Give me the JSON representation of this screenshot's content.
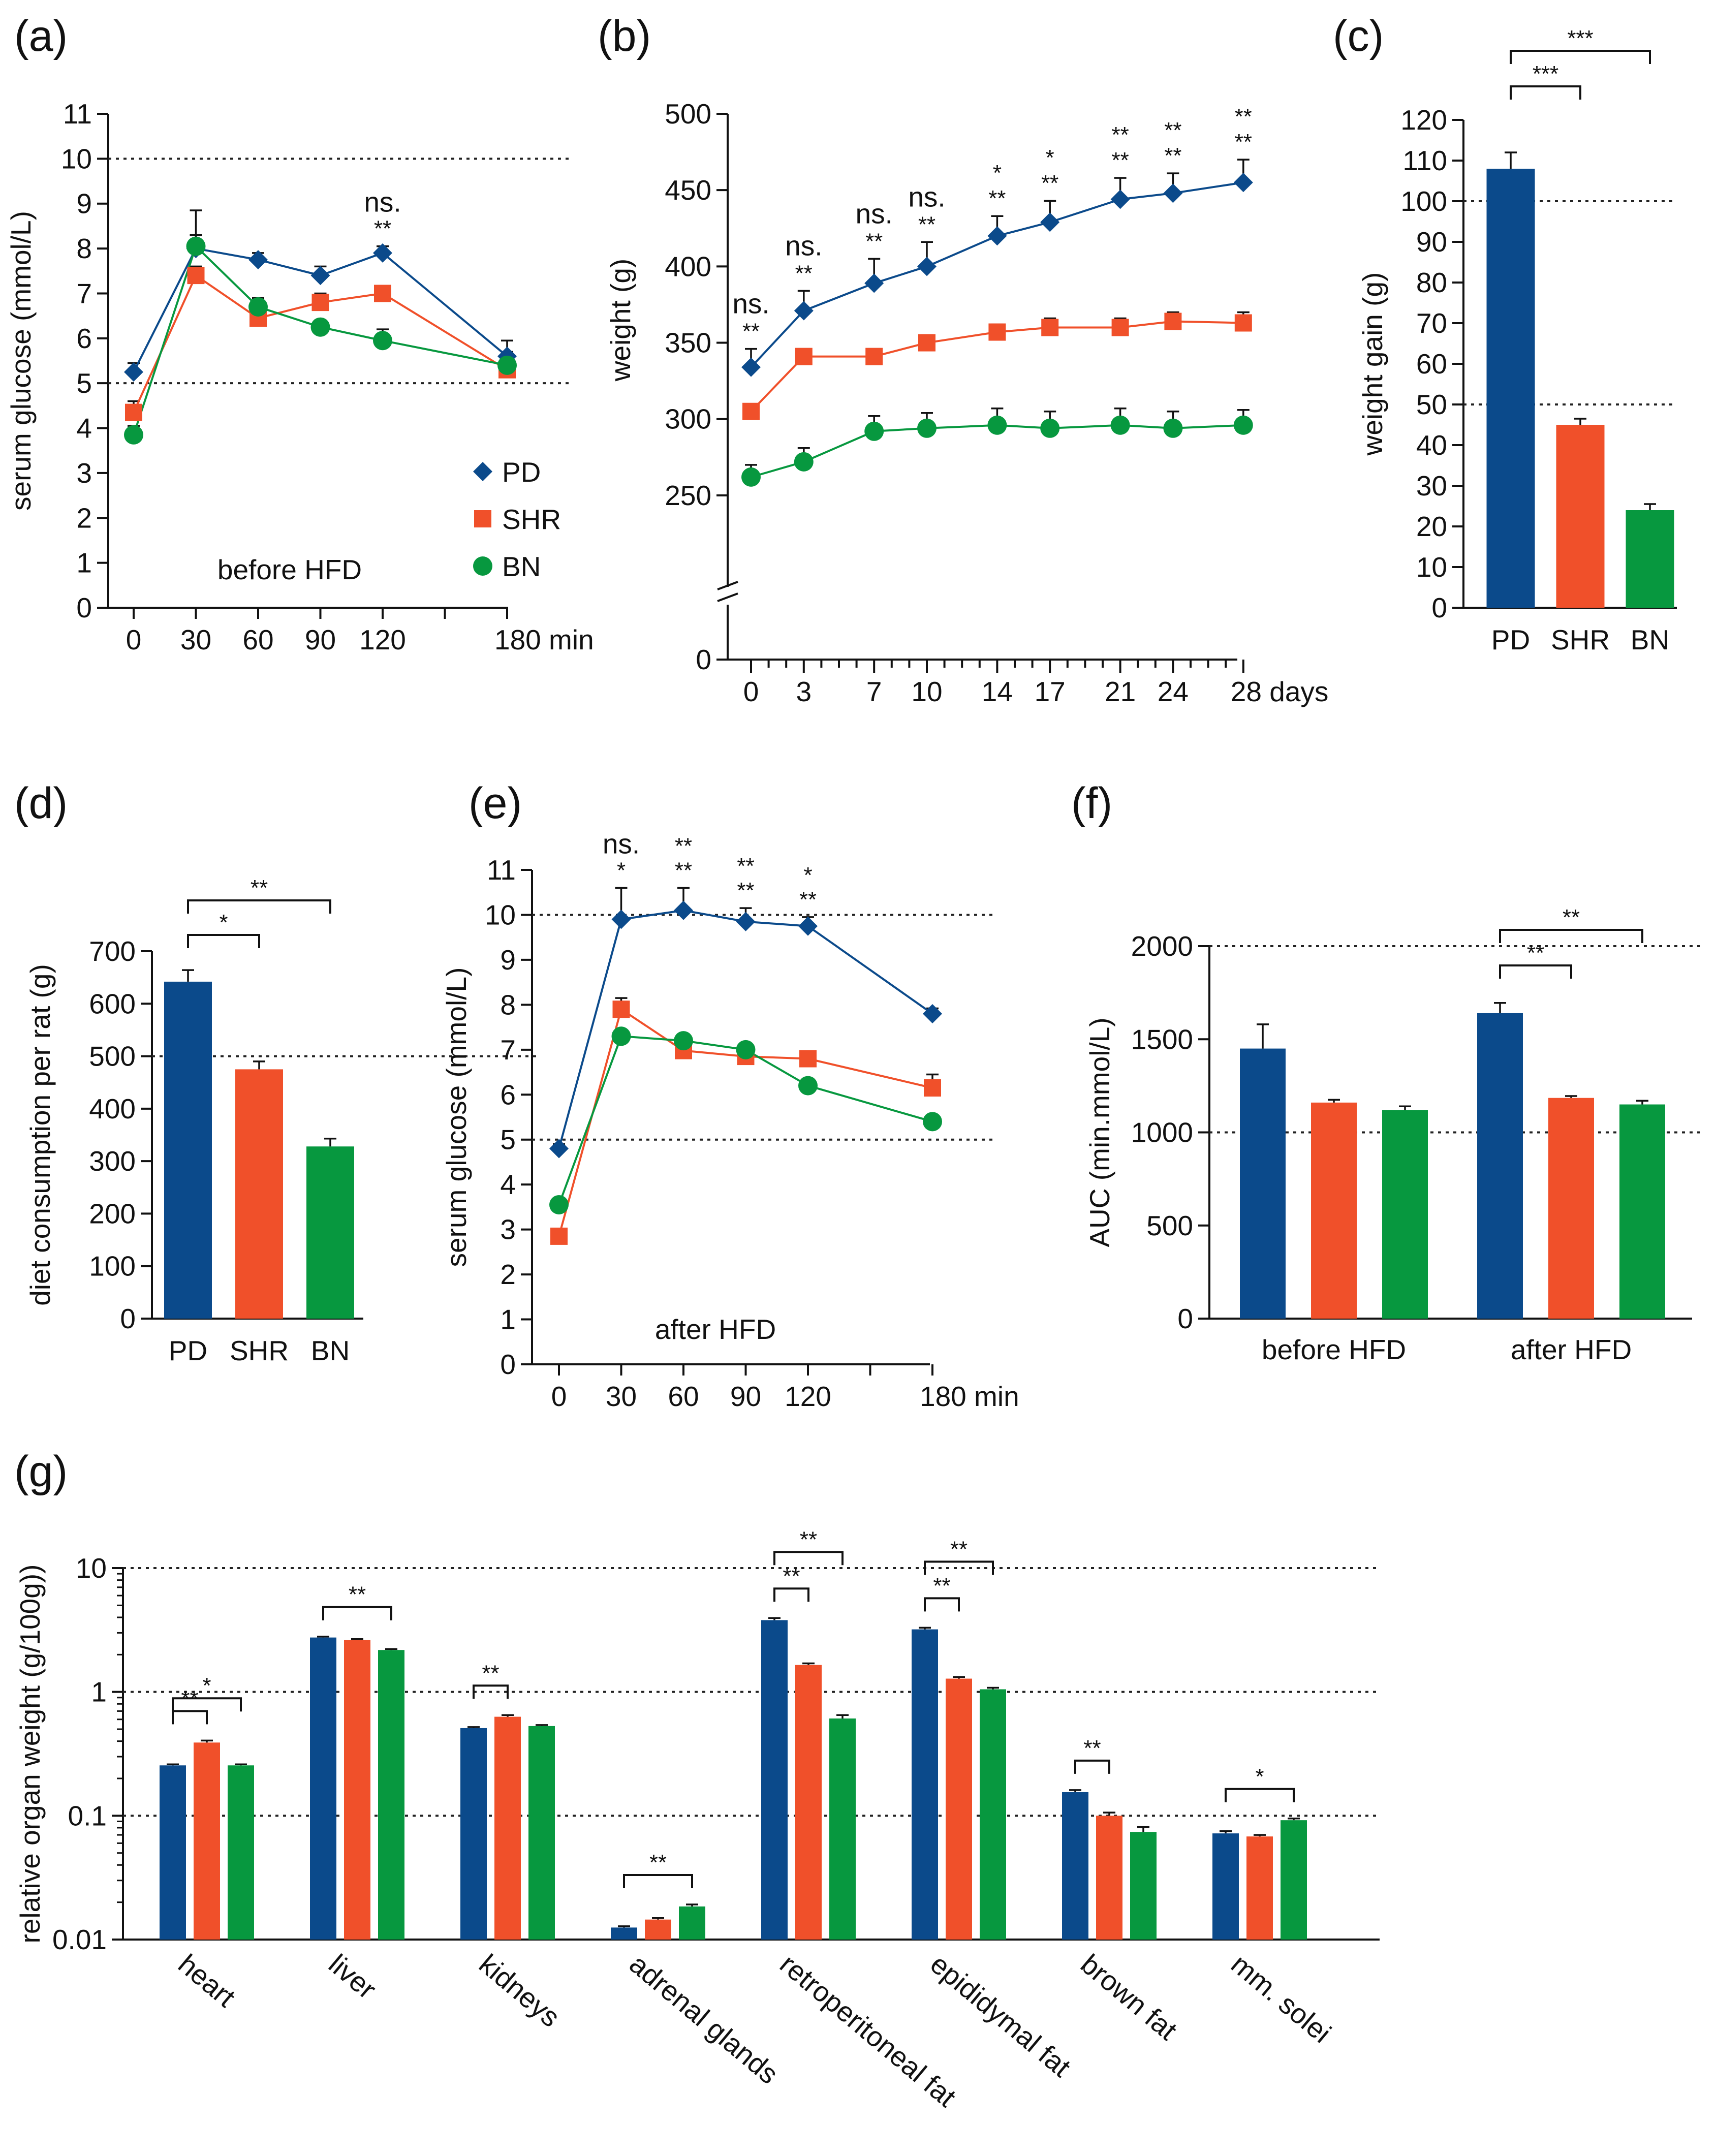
{
  "colors": {
    "PD": "#0b4a8b",
    "SHR": "#f0502a",
    "BN": "#07983f",
    "axis": "#111111",
    "ref": "#222222"
  },
  "chart_data": [
    {
      "id": "a",
      "type": "line",
      "panel_label": "(a)",
      "ylabel": "serum glucose (mmol/L)",
      "xlabel": "",
      "ylim": [
        0,
        11
      ],
      "y_ticks": [
        0,
        1,
        2,
        3,
        4,
        5,
        6,
        7,
        8,
        9,
        10,
        11
      ],
      "x_ticks": [
        0,
        30,
        60,
        90,
        120,
        180
      ],
      "x_tick_labels": [
        "0",
        "30",
        "60",
        "90",
        "120",
        "180 min"
      ],
      "x_minor_ticks": [
        150
      ],
      "ref_lines": [
        5,
        10
      ],
      "annotation_text": "before HFD",
      "legend": [
        "PD",
        "SHR",
        "BN"
      ],
      "x": [
        0,
        30,
        60,
        90,
        120,
        180
      ],
      "series": [
        {
          "name": "PD",
          "marker": "diamond",
          "values": [
            5.25,
            8.0,
            7.75,
            7.4,
            7.9,
            5.6
          ],
          "errors": [
            0.2,
            0.85,
            0.15,
            0.2,
            0.15,
            0.35
          ]
        },
        {
          "name": "SHR",
          "marker": "square",
          "values": [
            4.35,
            7.4,
            6.45,
            6.8,
            7.0,
            5.3
          ],
          "errors": [
            0.25,
            0.2,
            0.2,
            0.2,
            0.1,
            0.35
          ]
        },
        {
          "name": "BN",
          "marker": "circle",
          "values": [
            3.85,
            8.05,
            6.7,
            6.25,
            5.95,
            5.4
          ],
          "errors": [
            0.2,
            0.25,
            0.2,
            0.15,
            0.25,
            0.3
          ]
        }
      ],
      "significance": [
        {
          "x": 120,
          "lines": [
            "ns.",
            "**"
          ]
        }
      ]
    },
    {
      "id": "b",
      "type": "line",
      "panel_label": "(b)",
      "ylabel": "weight (g)",
      "xlabel": "",
      "ylim": [
        230,
        500
      ],
      "y_ticks": [
        250,
        300,
        350,
        400,
        450,
        500
      ],
      "y_zero_label": "0",
      "x_ticks": [
        0,
        3,
        7,
        10,
        14,
        17,
        21,
        24,
        28
      ],
      "x_tick_labels": [
        "0",
        "3",
        "7",
        "10",
        "14",
        "17",
        "21",
        "24",
        "28 days"
      ],
      "x_minor_ticks": [
        1,
        2,
        4,
        5,
        6,
        8,
        9,
        11,
        12,
        13,
        15,
        16,
        18,
        19,
        20,
        22,
        23,
        25,
        26,
        27
      ],
      "x": [
        0,
        3,
        7,
        10,
        14,
        17,
        21,
        24,
        28
      ],
      "series": [
        {
          "name": "PD",
          "marker": "diamond",
          "values": [
            334,
            371,
            389,
            400,
            420,
            429,
            444,
            448,
            455
          ],
          "errors": [
            12,
            13,
            16,
            16,
            13,
            14,
            14,
            13,
            15
          ]
        },
        {
          "name": "SHR",
          "marker": "square",
          "values": [
            305,
            341,
            341,
            350,
            357,
            360,
            360,
            364,
            363
          ],
          "errors": [
            5,
            5,
            5,
            5,
            5,
            6,
            6,
            6,
            7
          ]
        },
        {
          "name": "BN",
          "marker": "circle",
          "values": [
            262,
            272,
            292,
            294,
            296,
            294,
            296,
            294,
            296
          ],
          "errors": [
            8,
            9,
            10,
            10,
            11,
            11,
            11,
            11,
            10
          ]
        }
      ],
      "significance": [
        {
          "x": 0,
          "lines": [
            "ns.",
            "**"
          ]
        },
        {
          "x": 3,
          "lines": [
            "ns.",
            "**"
          ]
        },
        {
          "x": 7,
          "lines": [
            "ns.",
            "**"
          ]
        },
        {
          "x": 10,
          "lines": [
            "ns.",
            "**"
          ]
        },
        {
          "x": 14,
          "lines": [
            "*",
            "**"
          ]
        },
        {
          "x": 17,
          "lines": [
            "*",
            "**"
          ]
        },
        {
          "x": 21,
          "lines": [
            "**",
            "**"
          ]
        },
        {
          "x": 24,
          "lines": [
            "**",
            "**"
          ]
        },
        {
          "x": 28,
          "lines": [
            "**",
            "**"
          ]
        }
      ]
    },
    {
      "id": "c",
      "type": "bar",
      "panel_label": "(c)",
      "ylabel": "weight gain (g)",
      "ylim": [
        0,
        120
      ],
      "y_ticks": [
        0,
        10,
        20,
        30,
        40,
        50,
        60,
        70,
        80,
        90,
        100,
        110,
        120
      ],
      "ref_lines": [
        50,
        100
      ],
      "categories": [
        "PD",
        "SHR",
        "BN"
      ],
      "values": [
        108,
        45,
        24
      ],
      "errors": [
        4,
        1.5,
        1.5
      ],
      "brackets": [
        {
          "from": 0,
          "to": 1,
          "label": "***"
        },
        {
          "from": 0,
          "to": 2,
          "label": "***"
        }
      ]
    },
    {
      "id": "d",
      "type": "bar",
      "panel_label": "(d)",
      "ylabel": "diet consumption per rat (g)",
      "ylim": [
        0,
        700
      ],
      "y_ticks": [
        0,
        100,
        200,
        300,
        400,
        500,
        600,
        700
      ],
      "ref_lines": [
        500
      ],
      "categories": [
        "PD",
        "SHR",
        "BN"
      ],
      "values": [
        642,
        475,
        328
      ],
      "errors": [
        22,
        15,
        15
      ],
      "brackets": [
        {
          "from": 0,
          "to": 1,
          "label": "*"
        },
        {
          "from": 0,
          "to": 2,
          "label": "**"
        }
      ]
    },
    {
      "id": "e",
      "type": "line",
      "panel_label": "(e)",
      "ylabel": "serum glucose (mmol/L)",
      "ylim": [
        0,
        11
      ],
      "y_ticks": [
        0,
        1,
        2,
        3,
        4,
        5,
        6,
        7,
        8,
        9,
        10,
        11
      ],
      "x_ticks": [
        0,
        30,
        60,
        90,
        120,
        180
      ],
      "x_tick_labels": [
        "0",
        "30",
        "60",
        "90",
        "120",
        "180 min"
      ],
      "x_minor_ticks": [
        150
      ],
      "ref_lines": [
        5,
        10
      ],
      "annotation_text": "after HFD",
      "x": [
        0,
        30,
        60,
        90,
        120,
        180
      ],
      "series": [
        {
          "name": "PD",
          "marker": "diamond",
          "values": [
            4.8,
            9.9,
            10.1,
            9.85,
            9.75,
            7.8
          ],
          "errors": [
            0.1,
            0.7,
            0.5,
            0.3,
            0.2,
            0.12
          ]
        },
        {
          "name": "SHR",
          "marker": "square",
          "values": [
            2.85,
            7.9,
            6.98,
            6.85,
            6.8,
            6.15
          ],
          "errors": [
            0.12,
            0.25,
            0.12,
            0.12,
            0.12,
            0.3
          ]
        },
        {
          "name": "BN",
          "marker": "circle",
          "values": [
            3.55,
            7.3,
            7.2,
            7.0,
            6.2,
            5.4
          ],
          "errors": [
            0.1,
            0.1,
            0.12,
            0.1,
            0.15,
            0.15
          ]
        }
      ],
      "significance": [
        {
          "x": 30,
          "lines": [
            "ns.",
            "*"
          ]
        },
        {
          "x": 60,
          "lines": [
            "**",
            "**"
          ]
        },
        {
          "x": 90,
          "lines": [
            "**",
            "**"
          ]
        },
        {
          "x": 120,
          "lines": [
            "*",
            "**"
          ]
        }
      ]
    },
    {
      "id": "f",
      "type": "bar",
      "panel_label": "(f)",
      "ylabel": "AUC (min.mmol/L)",
      "ylim": [
        0,
        2000
      ],
      "y_ticks": [
        0,
        500,
        1000,
        1500,
        2000
      ],
      "ref_lines": [
        1000,
        2000
      ],
      "categories": [
        "before HFD",
        "after HFD"
      ],
      "series": [
        {
          "name": "PD",
          "values": [
            1450,
            1640
          ],
          "errors": [
            130,
            55
          ]
        },
        {
          "name": "SHR",
          "values": [
            1160,
            1185
          ],
          "errors": [
            15,
            10
          ]
        },
        {
          "name": "BN",
          "values": [
            1120,
            1150
          ],
          "errors": [
            20,
            20
          ]
        }
      ],
      "brackets": [
        {
          "group": 1,
          "from": 0,
          "to": 1,
          "label": "**"
        },
        {
          "group": 1,
          "from": 0,
          "to": 2,
          "label": "**"
        }
      ]
    },
    {
      "id": "g",
      "type": "bar",
      "scale": "log",
      "panel_label": "(g)",
      "ylabel": "relative organ weight  (g/100g))",
      "ylim": [
        0.01,
        10
      ],
      "y_ticks": [
        0.01,
        0.1,
        1,
        10
      ],
      "y_tick_labels": [
        "0.01",
        "0.1",
        "1",
        "10"
      ],
      "ref_lines": [
        0.1,
        1,
        10
      ],
      "categories": [
        "heart",
        "liver",
        "kidneys",
        "adrenal glands",
        "retroperitoneal fat",
        "epididymal fat",
        "brown fat",
        "mm. solei"
      ],
      "series": [
        {
          "name": "PD",
          "values": [
            0.255,
            2.75,
            0.51,
            0.0125,
            3.8,
            3.2,
            0.155,
            0.072
          ],
          "errors": [
            0.005,
            0.05,
            0.01,
            0.0003,
            0.15,
            0.1,
            0.006,
            0.003
          ]
        },
        {
          "name": "SHR",
          "values": [
            0.39,
            2.62,
            0.63,
            0.0145,
            1.65,
            1.28,
            0.1,
            0.068
          ],
          "errors": [
            0.015,
            0.05,
            0.02,
            0.0004,
            0.05,
            0.04,
            0.006,
            0.002
          ]
        },
        {
          "name": "BN",
          "values": [
            0.255,
            2.18,
            0.53,
            0.0185,
            0.61,
            1.05,
            0.074,
            0.092
          ],
          "errors": [
            0.005,
            0.04,
            0.01,
            0.0007,
            0.04,
            0.03,
            0.007,
            0.003
          ]
        }
      ],
      "brackets": [
        {
          "group": 0,
          "from": 0,
          "to": 1,
          "label": "**"
        },
        {
          "group": 0,
          "from": 0,
          "to": 2,
          "label": "*"
        },
        {
          "group": 1,
          "from": 0,
          "to": 2,
          "label": "**"
        },
        {
          "group": 2,
          "from": 0,
          "to": 1,
          "label": "**"
        },
        {
          "group": 3,
          "from": 0,
          "to": 2,
          "label": "**"
        },
        {
          "group": 4,
          "from": 0,
          "to": 1,
          "label": "**"
        },
        {
          "group": 4,
          "from": 0,
          "to": 2,
          "label": "**"
        },
        {
          "group": 5,
          "from": 0,
          "to": 1,
          "label": "**"
        },
        {
          "group": 5,
          "from": 0,
          "to": 2,
          "label": "**"
        },
        {
          "group": 6,
          "from": 0,
          "to": 1,
          "label": "**"
        },
        {
          "group": 7,
          "from": 0,
          "to": 2,
          "label": "*"
        }
      ]
    }
  ]
}
